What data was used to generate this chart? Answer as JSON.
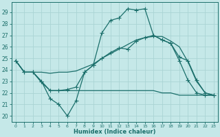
{
  "xlabel": "Humidex (Indice chaleur)",
  "bg_color": "#c5e8e8",
  "grid_color": "#aad4d4",
  "line_color": "#1a6e6a",
  "xlim": [
    -0.5,
    23.5
  ],
  "ylim": [
    19.5,
    29.9
  ],
  "yticks": [
    20,
    21,
    22,
    23,
    24,
    25,
    26,
    27,
    28,
    29
  ],
  "xticks": [
    0,
    1,
    2,
    3,
    4,
    5,
    6,
    7,
    8,
    9,
    10,
    11,
    12,
    13,
    14,
    15,
    16,
    17,
    18,
    19,
    20,
    21,
    22,
    23
  ],
  "line_high_x": [
    0,
    1,
    2,
    3,
    4,
    5,
    6,
    7,
    8,
    9,
    10,
    11,
    12,
    13,
    14,
    15,
    16,
    17,
    18,
    19,
    20,
    21,
    22,
    23
  ],
  "line_high_y": [
    24.8,
    23.8,
    23.8,
    23.0,
    21.5,
    21.0,
    20.0,
    21.3,
    23.8,
    24.4,
    27.2,
    28.3,
    28.5,
    29.3,
    29.2,
    29.3,
    27.0,
    26.6,
    26.3,
    24.8,
    23.1,
    22.0,
    21.8,
    21.8
  ],
  "line_mid_x": [
    0,
    1,
    2,
    3,
    4,
    5,
    6,
    7,
    8,
    9,
    10,
    11,
    12,
    13,
    14,
    15,
    16,
    17,
    18,
    19,
    20,
    21,
    22,
    23
  ],
  "line_mid_y": [
    24.8,
    23.8,
    23.8,
    23.0,
    22.2,
    22.2,
    22.3,
    22.5,
    23.8,
    24.4,
    25.0,
    25.5,
    25.9,
    25.8,
    26.5,
    26.8,
    27.0,
    26.6,
    26.3,
    25.1,
    24.8,
    23.1,
    22.0,
    21.8
  ],
  "line_avg_x": [
    0,
    1,
    2,
    3,
    4,
    5,
    6,
    7,
    8,
    9,
    10,
    11,
    12,
    13,
    14,
    15,
    16,
    17,
    18,
    19,
    20,
    21,
    22,
    23
  ],
  "line_avg_y": [
    24.8,
    23.8,
    23.8,
    23.8,
    23.7,
    23.8,
    23.8,
    23.9,
    24.2,
    24.5,
    25.0,
    25.4,
    25.8,
    26.2,
    26.6,
    26.8,
    26.9,
    26.9,
    26.5,
    26.0,
    24.7,
    23.0,
    22.0,
    21.8
  ],
  "line_low_x": [
    0,
    1,
    2,
    3,
    4,
    5,
    6,
    7,
    8,
    9,
    10,
    11,
    12,
    13,
    14,
    15,
    16,
    17,
    18,
    19,
    20,
    21,
    22,
    23
  ],
  "line_low_y": [
    24.8,
    23.8,
    23.8,
    22.9,
    22.2,
    22.2,
    22.2,
    22.2,
    22.2,
    22.2,
    22.2,
    22.2,
    22.2,
    22.2,
    22.2,
    22.2,
    22.2,
    22.0,
    22.0,
    21.8,
    21.8,
    21.8,
    21.8,
    21.8
  ]
}
